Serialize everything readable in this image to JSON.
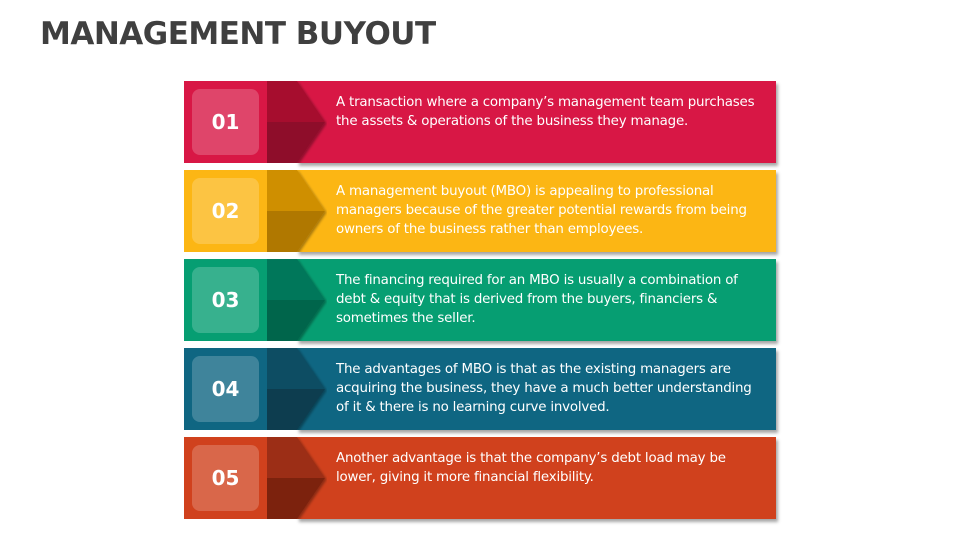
{
  "title": "MANAGEMENT BUYOUT",
  "items": [
    {
      "number": "01",
      "text": "A transaction where a company’s management team purchases the assets & operations of the business they manage.",
      "colors": {
        "main": "#d81745",
        "upper": "#a6112f",
        "lower": "#8e0e2a"
      }
    },
    {
      "number": "02",
      "text": "A management buyout (MBO) is appealing to professional managers because of the greater potential rewards from being owners of the business rather than employees.",
      "colors": {
        "main": "#fcb614",
        "upper": "#cf8f04",
        "lower": "#b07803"
      }
    },
    {
      "number": "03",
      "text": "The financing required for an MBO is usually a combination of debt & equity that is derived from the buyers, financiers & sometimes the seller.",
      "colors": {
        "main": "#069e72",
        "upper": "#05775a",
        "lower": "#04654c"
      }
    },
    {
      "number": "04",
      "text": "The advantages of MBO is that as the existing managers are acquiring the business, they have a much better understanding of it & there is no learning curve involved.",
      "colors": {
        "main": "#0f6682",
        "upper": "#0b4d63",
        "lower": "#093e50"
      }
    },
    {
      "number": "05",
      "text": "Another advantage is that the company’s debt load may be lower, giving it more financial flexibility.",
      "colors": {
        "main": "#d0411d",
        "upper": "#9c2e14",
        "lower": "#7c2410"
      }
    }
  ]
}
